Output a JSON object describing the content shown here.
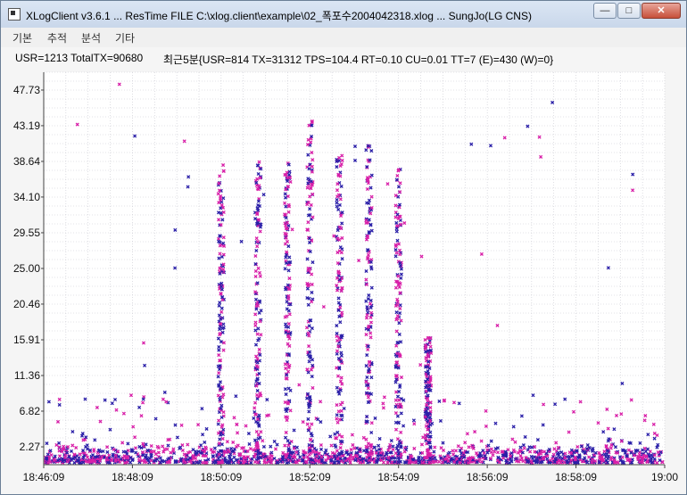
{
  "window": {
    "title": "XLogClient v3.6.1 ... ResTime FILE C:\\xlog.client\\example\\02_폭포수2004042318.xlog ... SungJo(LG CNS)",
    "minimize_glyph": "—",
    "maximize_glyph": "□",
    "close_glyph": "✕"
  },
  "menu": [
    "기본",
    "추적",
    "분석",
    "기타"
  ],
  "status": {
    "totals": "USR=1213 TotalTX=90680",
    "recent": "최근5분{USR=814 TX=31312 TPS=104.4 RT=0.10 CU=0.01 TT=7 (E)=430 (W)=0}"
  },
  "colors": {
    "blue": "#2a1fa8",
    "magenta": "#d81fa8",
    "grid": "#c8c8d0"
  },
  "chart_data": {
    "type": "scatter",
    "title": "",
    "xlabel": "",
    "ylabel": "",
    "y_ticks": [
      "47.73",
      "43.19",
      "38.64",
      "34.10",
      "29.55",
      "25.00",
      "20.46",
      "15.91",
      "11.36",
      "6.82",
      "2.27"
    ],
    "x_ticks": [
      "18:46:09",
      "18:48:09",
      "18:50:09",
      "18:52:09",
      "18:54:09",
      "18:56:09",
      "18:58:09",
      "19:00"
    ],
    "xlim": [
      "18:46:09",
      "19:00:09"
    ],
    "ylim": [
      0,
      50
    ],
    "grid": true,
    "columns": [
      {
        "time": "18:50:09",
        "top": 38.6
      },
      {
        "time": "18:50:59",
        "top": 39.0
      },
      {
        "time": "18:51:39",
        "top": 38.6
      },
      {
        "time": "18:52:09",
        "top": 43.9
      },
      {
        "time": "18:52:49",
        "top": 39.5
      },
      {
        "time": "18:53:29",
        "top": 41.0
      },
      {
        "time": "18:54:09",
        "top": 38.0
      },
      {
        "time": "18:54:49",
        "top": 16.5
      }
    ],
    "series": [
      {
        "name": "",
        "color": "blue"
      },
      {
        "name": "",
        "color": "magenta"
      }
    ]
  }
}
